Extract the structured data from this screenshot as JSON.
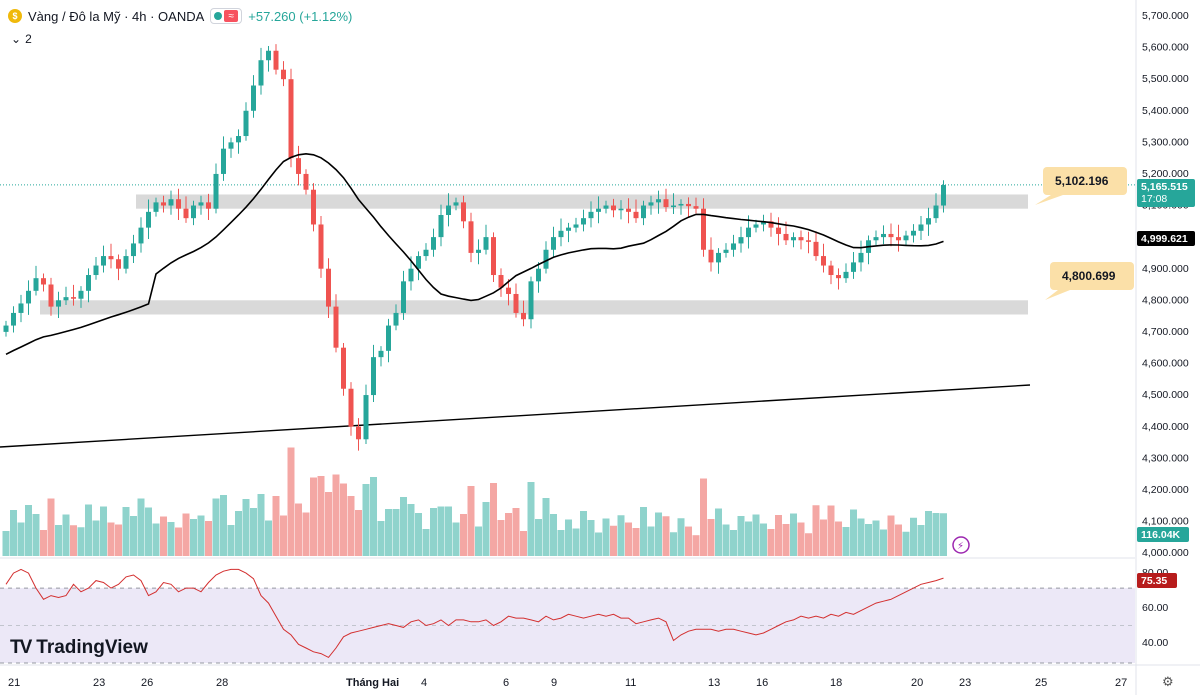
{
  "header": {
    "symbol_title": "Vàng / Đô la Mỹ · 4h · OANDA",
    "change": "+57.260 (+1.12%)",
    "wave_glyph": "≈",
    "coin_glyph": "$",
    "indicator_count": "2"
  },
  "brand": {
    "logo_mark": "TV",
    "name": "TradingView"
  },
  "price_axis": {
    "ticks": [
      "5,700.000",
      "5,600.000",
      "5,500.000",
      "5,400.000",
      "5,300.000",
      "5,200.000",
      "5,100.000",
      "5,000.000",
      "4,900.000",
      "4,800.000",
      "4,700.000",
      "4,600.000",
      "4,500.000",
      "4,400.000",
      "4,300.000",
      "4,200.000",
      "4,100.000",
      "4,000.000"
    ]
  },
  "labels": {
    "current_price": "5,165.515",
    "countdown": "17:08",
    "ma_value": "4,999.621",
    "volume": "116.04K",
    "rsi_value": "75.35",
    "upper_zone": "5,102.196",
    "lower_zone": "4,800.699"
  },
  "time_axis": [
    "21",
    "23",
    "26",
    "28",
    "Tháng Hai",
    "4",
    "6",
    "9",
    "11",
    "13",
    "16",
    "18",
    "20",
    "23",
    "25",
    "27"
  ],
  "rsi_axis": [
    "80.00",
    "60.00",
    "40.00"
  ],
  "colors": {
    "up": "#26a69a",
    "down": "#ef5350",
    "up_volume": "#8fd3cc",
    "down_volume": "#f4a7a4",
    "zone": "#d9d9d9",
    "callout": "#fbe0a8",
    "rsi_line": "#d32f2f",
    "rsi_band": "#ece8f7",
    "ma": "#000000"
  },
  "chart_data": [
    {
      "type": "candlestick",
      "title": "Vàng / Đô la Mỹ · 4h · OANDA",
      "ylim": [
        4000,
        5700
      ],
      "key_levels": {
        "resistance_zone": 5102.196,
        "support_zone": 4800.699,
        "moving_average": 4999.621,
        "last_price": 5165.515
      },
      "close": [
        4720,
        4760,
        4790,
        4830,
        4870,
        4850,
        4780,
        4800,
        4810,
        4805,
        4830,
        4880,
        4910,
        4940,
        4930,
        4900,
        4940,
        4980,
        5030,
        5080,
        5110,
        5100,
        5120,
        5090,
        5060,
        5100,
        5110,
        5090,
        5200,
        5280,
        5300,
        5320,
        5400,
        5480,
        5560,
        5590,
        5530,
        5500,
        5250,
        5200,
        5150,
        5040,
        4900,
        4780,
        4650,
        4520,
        4400,
        4360,
        4500,
        4620,
        4640,
        4720,
        4760,
        4860,
        4900,
        4940,
        4960,
        5000,
        5070,
        5100,
        5110,
        5050,
        4950,
        4960,
        5000,
        4880,
        4840,
        4820,
        4760,
        4740,
        4860,
        4900,
        4960,
        5000,
        5020,
        5030,
        5040,
        5060,
        5080,
        5090,
        5100,
        5085,
        5090,
        5080,
        5060,
        5100,
        5110,
        5120,
        5095,
        5100,
        5105,
        5098,
        5090,
        4960,
        4920,
        4950,
        4960,
        4980,
        5000,
        5030,
        5040,
        5050,
        5030,
        5010,
        4990,
        5000,
        4990,
        4985,
        4940,
        4910,
        4880,
        4870,
        4890,
        4920,
        4950,
        4990,
        5000,
        5010,
        5000,
        4990,
        5005,
        5020,
        5040,
        5060,
        5100,
        5165
      ]
    },
    {
      "type": "bar",
      "title": "Volume",
      "last_value": "116.04K"
    },
    {
      "type": "line",
      "title": "RSI",
      "ylim": [
        30,
        85
      ],
      "values": [
        72,
        78,
        80,
        78,
        70,
        64,
        66,
        65,
        66,
        72,
        68,
        70,
        74,
        73,
        70,
        72,
        76,
        77,
        74,
        66,
        68,
        73,
        72,
        68,
        70,
        70,
        68,
        73,
        77,
        79,
        80,
        80,
        78,
        75,
        66,
        62,
        55,
        48,
        45,
        40,
        38,
        36,
        35,
        33,
        38,
        44,
        46,
        47,
        48,
        49,
        50,
        51,
        50,
        49,
        52,
        53,
        50,
        51,
        53,
        50,
        53,
        53,
        52,
        52,
        53,
        50,
        52,
        55,
        54,
        54,
        53,
        52,
        55,
        53,
        54,
        56,
        55,
        54,
        55,
        56,
        55,
        56,
        54,
        54,
        51,
        52,
        53,
        54,
        52,
        42,
        45,
        47,
        48,
        48,
        48,
        47,
        48,
        48,
        47,
        46,
        45,
        46,
        48,
        50,
        52,
        53,
        55,
        54,
        55,
        54,
        56,
        55,
        57,
        56,
        58,
        60,
        62,
        63,
        64,
        66,
        68,
        70,
        72,
        73,
        74,
        75.35
      ]
    }
  ]
}
